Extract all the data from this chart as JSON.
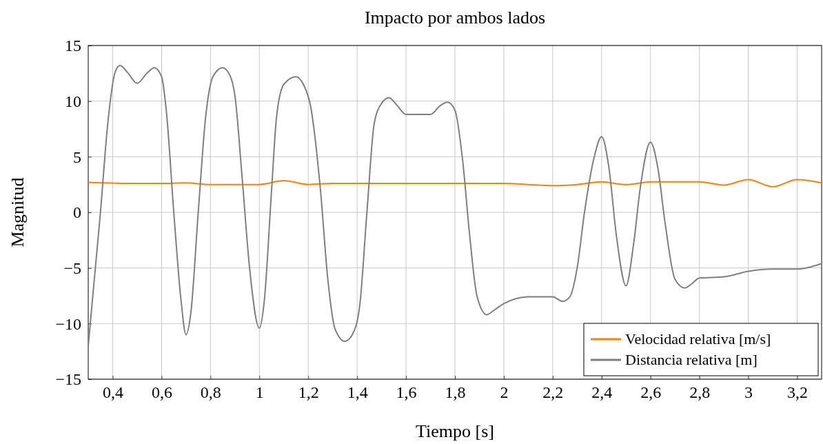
{
  "chart_data": {
    "type": "line",
    "title": "Impacto por ambos lados",
    "xlabel": "Tiempo [s]",
    "ylabel": "Magnitud",
    "xlim": [
      0.3,
      3.3
    ],
    "ylim": [
      -15,
      15
    ],
    "xticks": [
      {
        "value": 0.4,
        "label": "0,4"
      },
      {
        "value": 0.6,
        "label": "0,6"
      },
      {
        "value": 0.8,
        "label": "0,8"
      },
      1,
      {
        "value": 1.2,
        "label": "1,2"
      },
      {
        "value": 1.4,
        "label": "1,4"
      },
      {
        "value": 1.6,
        "label": "1,6"
      },
      {
        "value": 1.8,
        "label": "1,8"
      },
      2,
      {
        "value": 2.2,
        "label": "2,2"
      },
      {
        "value": 2.4,
        "label": "2,4"
      },
      {
        "value": 2.6,
        "label": "2,6"
      },
      {
        "value": 2.8,
        "label": "2,8"
      },
      3,
      {
        "value": 3.2,
        "label": "3,2"
      }
    ],
    "yticks": [
      {
        "value": -15,
        "label": "−15"
      },
      {
        "value": -10,
        "label": "−10"
      },
      {
        "value": -5,
        "label": "−5"
      },
      0,
      5,
      10,
      15
    ],
    "grid": true,
    "legend": "bottom right",
    "line_style": "solid",
    "marker": "none",
    "series": [
      {
        "name": "Velocidad relativa [m/s]",
        "color": "#ff7f00",
        "x": [
          0.3,
          0.5,
          0.6,
          0.7,
          0.8,
          0.9,
          1.0,
          1.1,
          1.2,
          1.3,
          1.5,
          1.8,
          2.0,
          2.1,
          2.2,
          2.3,
          2.4,
          2.5,
          2.6,
          2.7,
          2.8,
          2.9,
          3.0,
          3.1,
          3.2,
          3.3
        ],
        "values": [
          2.7,
          2.6,
          2.6,
          2.65,
          2.5,
          2.5,
          2.5,
          2.85,
          2.5,
          2.6,
          2.6,
          2.6,
          2.6,
          2.5,
          2.4,
          2.5,
          2.75,
          2.5,
          2.75,
          2.75,
          2.75,
          2.45,
          2.95,
          2.3,
          2.95,
          2.65
        ]
      },
      {
        "name": "Distancia relativa [m]",
        "color": "#7f7f7f",
        "x": [
          0.3,
          0.35,
          0.38,
          0.41,
          0.43,
          0.46,
          0.5,
          0.54,
          0.57,
          0.6,
          0.62,
          0.65,
          0.68,
          0.7,
          0.72,
          0.75,
          0.78,
          0.81,
          0.85,
          0.88,
          0.9,
          0.93,
          0.96,
          1.0,
          1.02,
          1.05,
          1.07,
          1.1,
          1.15,
          1.18,
          1.21,
          1.25,
          1.28,
          1.31,
          1.35,
          1.38,
          1.41,
          1.44,
          1.47,
          1.5,
          1.53,
          1.56,
          1.6,
          1.7,
          1.74,
          1.77,
          1.8,
          1.83,
          1.86,
          1.89,
          1.93,
          1.96,
          2.0,
          2.1,
          2.2,
          2.24,
          2.27,
          2.3,
          2.33,
          2.37,
          2.4,
          2.43,
          2.46,
          2.5,
          2.53,
          2.56,
          2.6,
          2.63,
          2.66,
          2.7,
          2.74,
          2.77,
          2.8,
          2.9,
          3.0,
          3.1,
          3.2,
          3.3
        ],
        "values": [
          -12,
          0,
          8,
          12.6,
          13.2,
          12.6,
          11.6,
          12.5,
          13,
          12.2,
          9,
          0,
          -8,
          -11,
          -9,
          0,
          8.5,
          12.2,
          13,
          12.3,
          10.5,
          3,
          -5,
          -10.4,
          -8,
          2,
          8.5,
          11.5,
          12.2,
          11.5,
          9.5,
          2,
          -6,
          -10.5,
          -11.6,
          -11,
          -8.5,
          0,
          8,
          9.8,
          10.3,
          9.7,
          8.8,
          8.8,
          9.6,
          9.9,
          9.2,
          5,
          -2,
          -7.5,
          -9.2,
          -8.8,
          -8.2,
          -7.6,
          -7.6,
          -8,
          -7.6,
          -5,
          0,
          5,
          6.8,
          4,
          -2,
          -6.6,
          -3,
          2.5,
          6.3,
          4,
          -1,
          -6,
          -6.8,
          -6.4,
          -5.9,
          -5.8,
          -5.3,
          -5.1,
          -5.1,
          -4.6
        ]
      }
    ]
  }
}
